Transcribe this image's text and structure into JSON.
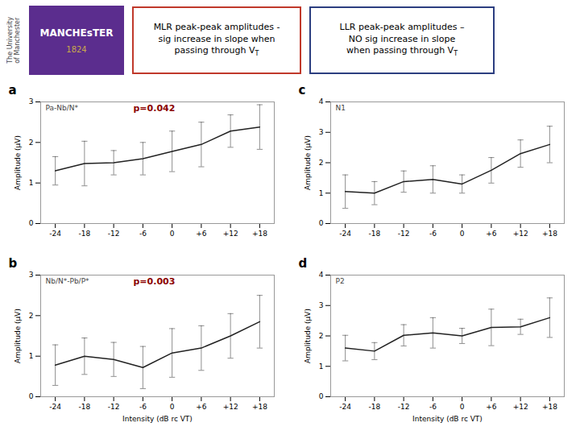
{
  "annotations": [
    {
      "text": "The University\nof Manchester"
    },
    {
      "text": "MANCHEsTER",
      "color": "#5b2d8e"
    },
    {
      "text": "1824",
      "color": "#c9a84c"
    },
    {
      "text": "MLR peak-peak amplitudes -\nsig increase in slope when\npassing through V",
      "color": "#c0392b"
    },
    {
      "text": "T"
    },
    {
      "text": "LLR peak-peak amplitudes –\nNO sig increase in slope\nwhen passing through V",
      "color": "#2c3e80"
    },
    {
      "text": "T"
    }
  ],
  "chart_data": [
    {
      "type": "line",
      "title": "a",
      "subtitle": "Pa-Nb/N*",
      "annotations": [
        {
          "text": "p=0.042",
          "color": "#8b0000"
        }
      ],
      "x": [
        -24,
        -18,
        -12,
        -6,
        0,
        6,
        12,
        18
      ],
      "series": [
        {
          "color": "#222222",
          "values": [
            1.3,
            1.48,
            1.5,
            1.6,
            1.78,
            1.95,
            2.28,
            2.38
          ],
          "errors": [
            0.35,
            0.55,
            0.3,
            0.4,
            0.5,
            0.55,
            0.4,
            0.55
          ]
        }
      ],
      "y_label": "Amplitude (μV)",
      "xlim": [
        -27,
        21
      ],
      "xticks": [
        -24,
        -18,
        -12,
        -6,
        0,
        {
          "value": 6,
          "label": "+6"
        },
        {
          "value": 12,
          "label": "+12"
        },
        {
          "value": 18,
          "label": "+18"
        }
      ],
      "ylim": [
        0,
        3
      ],
      "yticks": [
        0,
        1,
        2,
        3
      ]
    },
    {
      "type": "line",
      "title": "b",
      "subtitle": "Nb/N*-Pb/P*",
      "annotations": [
        {
          "text": "p=0.003",
          "color": "#8b0000"
        }
      ],
      "x": [
        -24,
        -18,
        -12,
        -6,
        0,
        6,
        12,
        18
      ],
      "series": [
        {
          "color": "#222222",
          "values": [
            0.78,
            1.0,
            0.92,
            0.72,
            1.08,
            1.2,
            1.5,
            1.85
          ],
          "errors": [
            0.5,
            0.45,
            0.42,
            0.52,
            0.6,
            0.55,
            0.55,
            0.65
          ]
        }
      ],
      "x_label": "Intensity (dB rc VT)",
      "y_label": "Amplitude (μV)",
      "xlim": [
        -27,
        21
      ],
      "xticks": [
        -24,
        -18,
        -12,
        -6,
        0,
        {
          "value": 6,
          "label": "+6"
        },
        {
          "value": 12,
          "label": "+12"
        },
        {
          "value": 18,
          "label": "+18"
        }
      ],
      "ylim": [
        0,
        3
      ],
      "yticks": [
        0,
        1,
        2,
        3
      ]
    },
    {
      "type": "line",
      "title": "c",
      "subtitle": "N1",
      "x": [
        -24,
        -18,
        -12,
        -6,
        0,
        6,
        12,
        18
      ],
      "series": [
        {
          "color": "#222222",
          "values": [
            1.05,
            1.0,
            1.38,
            1.45,
            1.3,
            1.75,
            2.3,
            2.6
          ],
          "errors": [
            0.55,
            0.38,
            0.35,
            0.45,
            0.3,
            0.42,
            0.45,
            0.6
          ]
        }
      ],
      "y_label": "Amplitude (μV)",
      "xlim": [
        -27,
        21
      ],
      "xticks": [
        -24,
        -18,
        -12,
        -6,
        0,
        {
          "value": 6,
          "label": "+6"
        },
        {
          "value": 12,
          "label": "+12"
        },
        {
          "value": 18,
          "label": "+18"
        }
      ],
      "ylim": [
        0,
        4
      ],
      "yticks": [
        0,
        1,
        2,
        3,
        4
      ]
    },
    {
      "type": "line",
      "title": "d",
      "subtitle": "P2",
      "x": [
        -24,
        -18,
        -12,
        -6,
        0,
        6,
        12,
        18
      ],
      "series": [
        {
          "color": "#222222",
          "values": [
            1.6,
            1.5,
            2.02,
            2.1,
            2.0,
            2.28,
            2.3,
            2.6
          ],
          "errors": [
            0.42,
            0.28,
            0.35,
            0.5,
            0.25,
            0.6,
            0.25,
            0.65
          ]
        }
      ],
      "x_label": "Intensity (dB rc VT)",
      "y_label": "Amplitude (μV)",
      "xlim": [
        -27,
        21
      ],
      "xticks": [
        -24,
        -18,
        -12,
        -6,
        0,
        {
          "value": 6,
          "label": "+6"
        },
        {
          "value": 12,
          "label": "+12"
        },
        {
          "value": 18,
          "label": "+18"
        }
      ],
      "ylim": [
        0,
        4
      ],
      "yticks": [
        0,
        1,
        2,
        3,
        4
      ]
    }
  ]
}
